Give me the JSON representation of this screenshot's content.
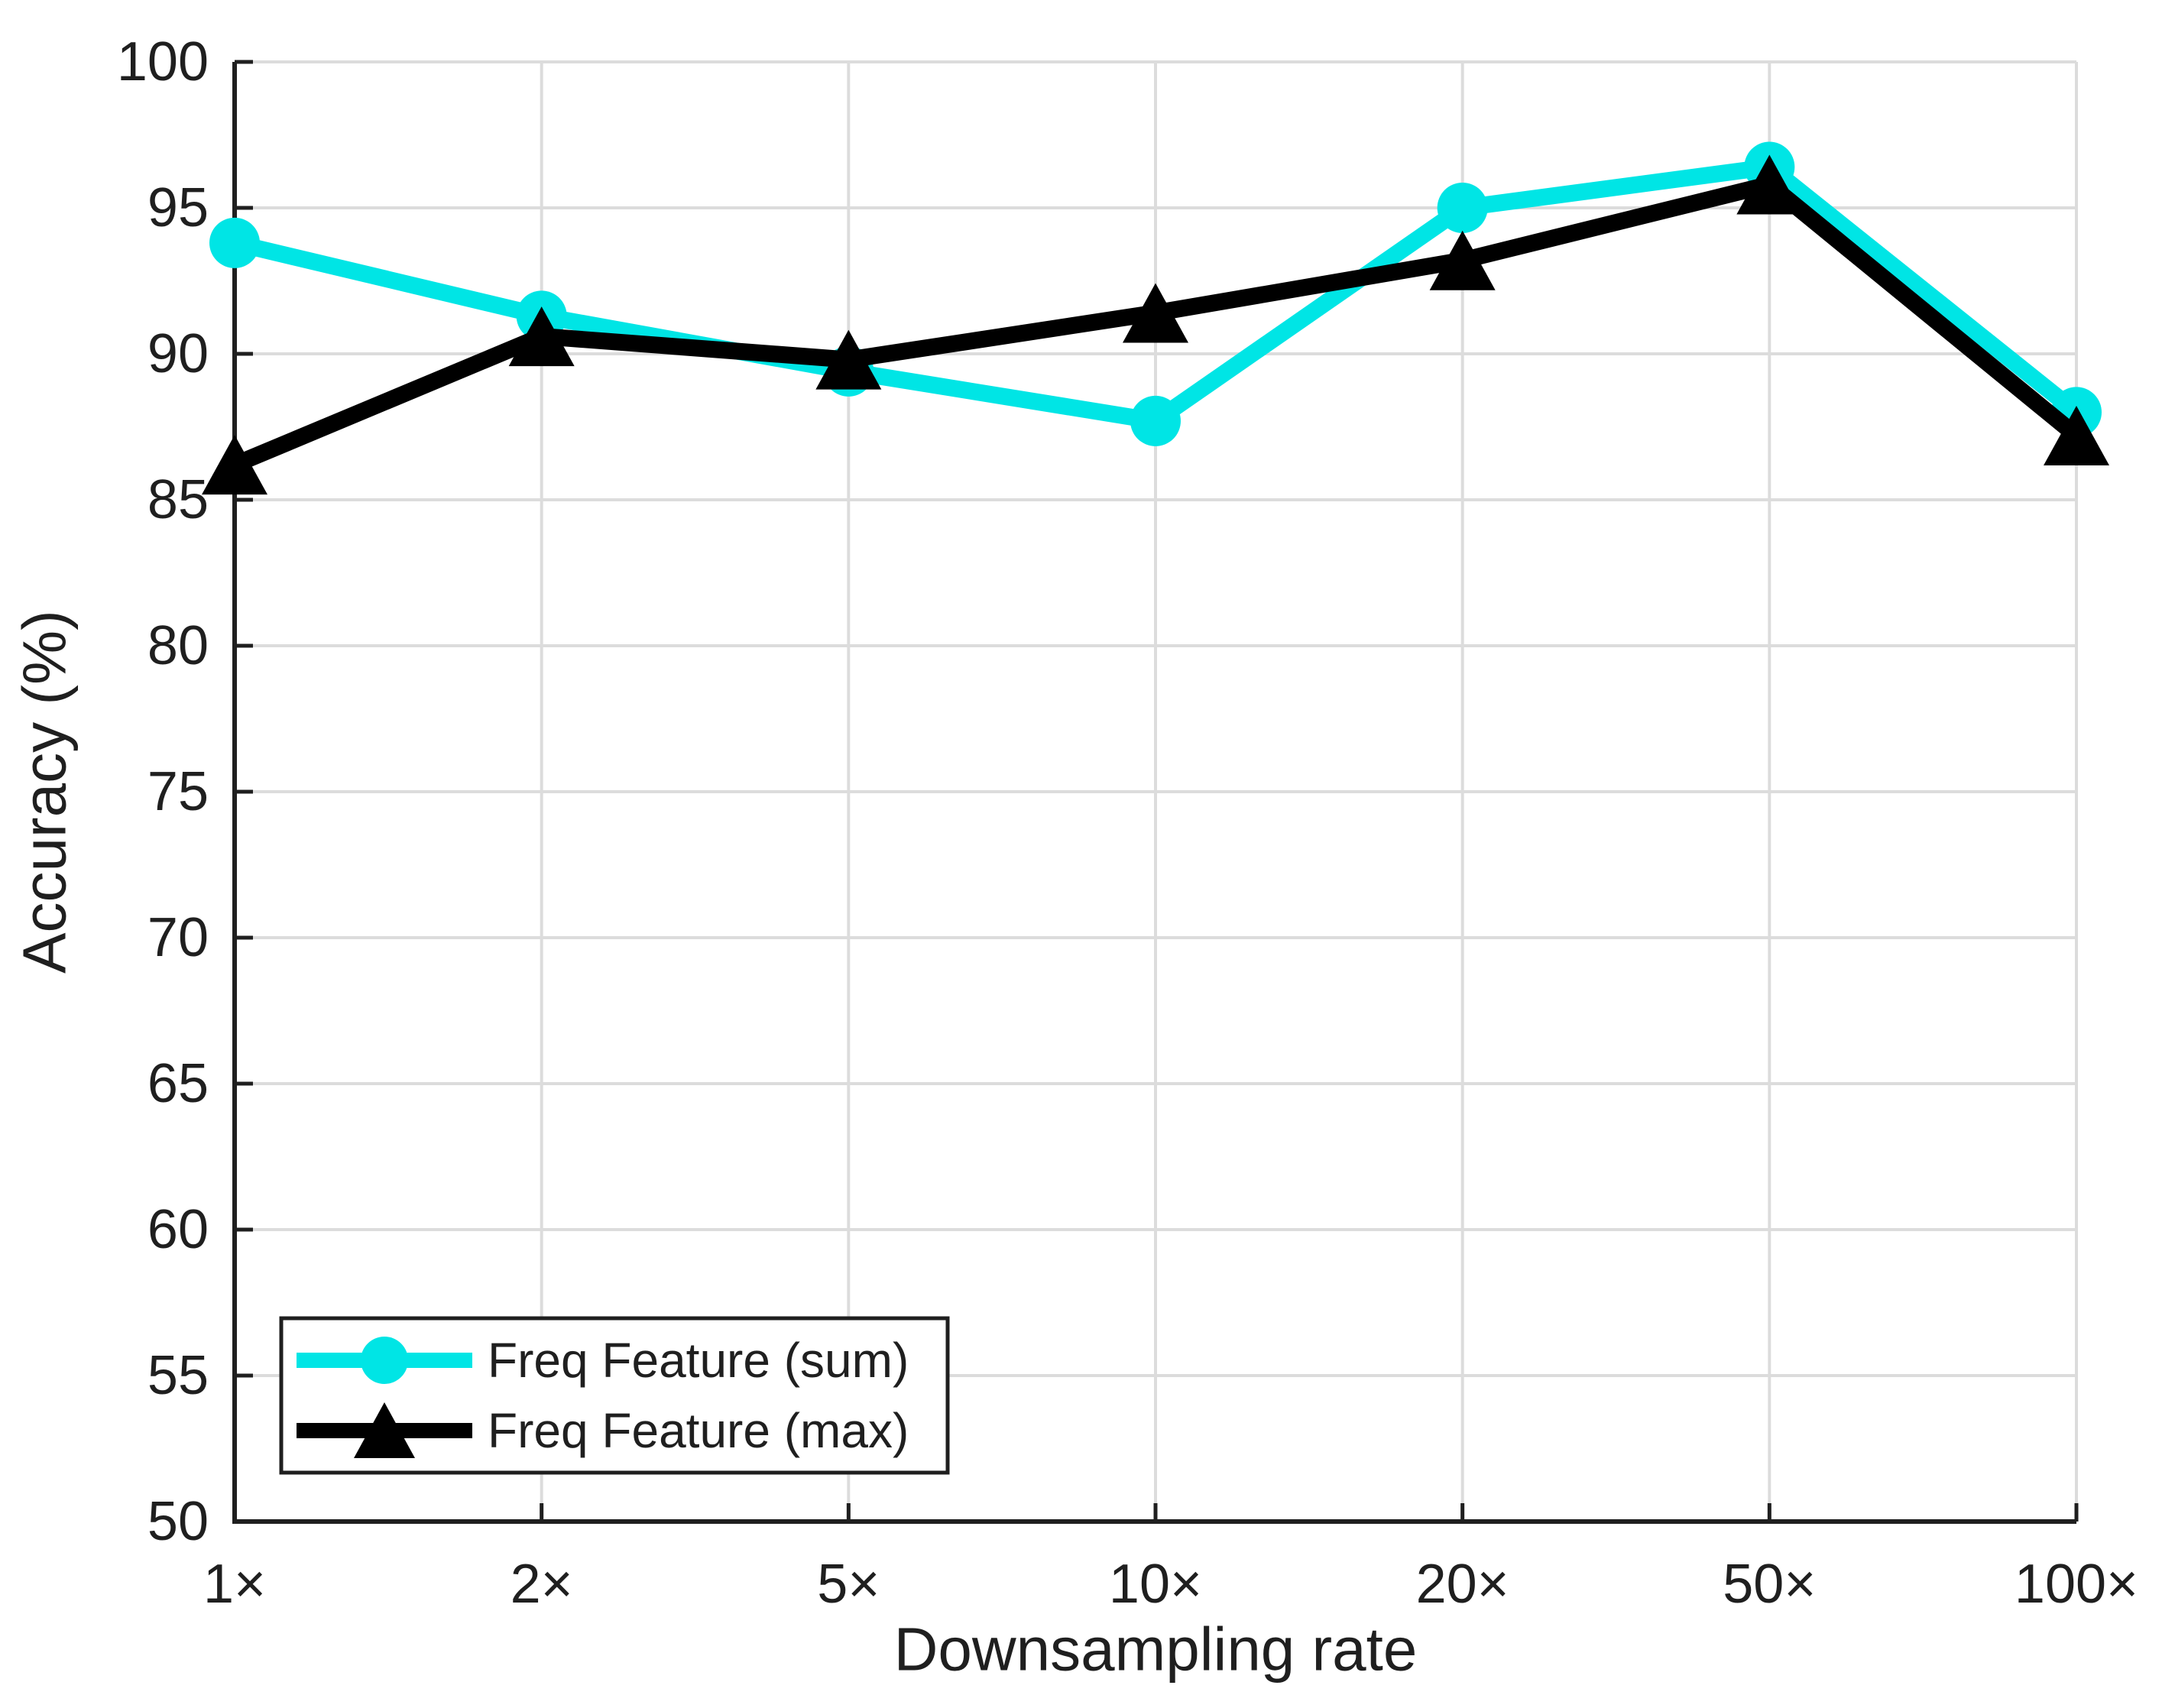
{
  "chart_data": {
    "type": "line",
    "title": "",
    "xlabel": "Downsampling rate",
    "ylabel": "Accuracy (%)",
    "categories": [
      "1×",
      "2×",
      "5×",
      "10×",
      "20×",
      "50×",
      "100×"
    ],
    "yticks": [
      "50",
      "55",
      "60",
      "65",
      "70",
      "75",
      "80",
      "85",
      "90",
      "95",
      "100"
    ],
    "ylim": [
      50,
      100
    ],
    "grid": true,
    "legend_position": "bottom-left",
    "series": [
      {
        "name": "Freq Feature (sum)",
        "color": "#00E5E5",
        "marker": "circle",
        "values": [
          93.8,
          91.3,
          89.4,
          87.7,
          95.0,
          96.4,
          88.0
        ]
      },
      {
        "name": "Freq Feature (max)",
        "color": "#000000",
        "marker": "triangle",
        "values": [
          86.2,
          90.6,
          89.8,
          91.4,
          93.2,
          95.8,
          87.2
        ]
      }
    ]
  },
  "colors": {
    "background": "#ffffff",
    "grid": "#dcdcdc",
    "axis": "#1f1f1f",
    "text": "#1f1f1f",
    "legend_background": "#ffffff",
    "legend_border": "#1f1f1f"
  }
}
